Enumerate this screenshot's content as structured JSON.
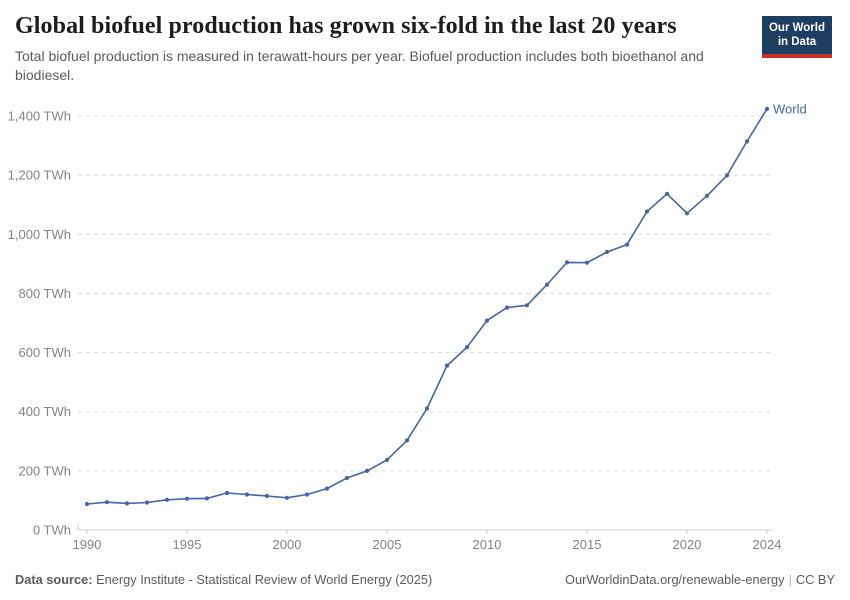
{
  "header": {
    "title": "Global biofuel production has grown six-fold in the last 20 years",
    "subtitle": "Total biofuel production is measured in terawatt-hours per year. Biofuel production includes both bioethanol and biodiesel.",
    "logo": {
      "line1": "Our World",
      "line2": "in Data",
      "bg_color": "#1d3d63",
      "accent_color": "#c7302b"
    }
  },
  "chart_data": {
    "type": "line",
    "title": "Global biofuel production",
    "unit": "TWh",
    "x": [
      1990,
      1991,
      1992,
      1993,
      1994,
      1995,
      1996,
      1997,
      1998,
      1999,
      2000,
      2001,
      2002,
      2003,
      2004,
      2005,
      2006,
      2007,
      2008,
      2009,
      2010,
      2011,
      2012,
      2013,
      2014,
      2015,
      2016,
      2017,
      2018,
      2019,
      2020,
      2021,
      2022,
      2023,
      2024
    ],
    "series": [
      {
        "name": "World",
        "color": "#4664a5",
        "values": [
          88,
          94,
          90,
          93,
          102,
          106,
          107,
          125,
          120,
          115,
          109,
          120,
          140,
          176,
          200,
          237,
          303,
          411,
          556,
          618,
          708,
          752,
          760,
          830,
          905,
          904,
          940,
          965,
          1077,
          1137,
          1071,
          1130,
          1199,
          1314,
          1424
        ]
      }
    ],
    "ylim": [
      0,
      1400
    ],
    "yticks": [
      0,
      200,
      400,
      600,
      800,
      1000,
      1200,
      1400
    ],
    "ytick_suffix": " TWh",
    "xticks": [
      1990,
      1995,
      2000,
      2005,
      2010,
      2015,
      2020,
      2024
    ],
    "grid": "horizontal-dashed",
    "grid_color": "#dcdcdc",
    "axis_color": "#cccccc",
    "tick_label_color": "#858585",
    "legend_position": "end-of-line"
  },
  "footer": {
    "source_label": "Data source:",
    "source_text": " Energy Institute - Statistical Review of World Energy (2025)",
    "url": "OurWorldinData.org/renewable-energy",
    "separator": "|",
    "license": "CC BY"
  }
}
